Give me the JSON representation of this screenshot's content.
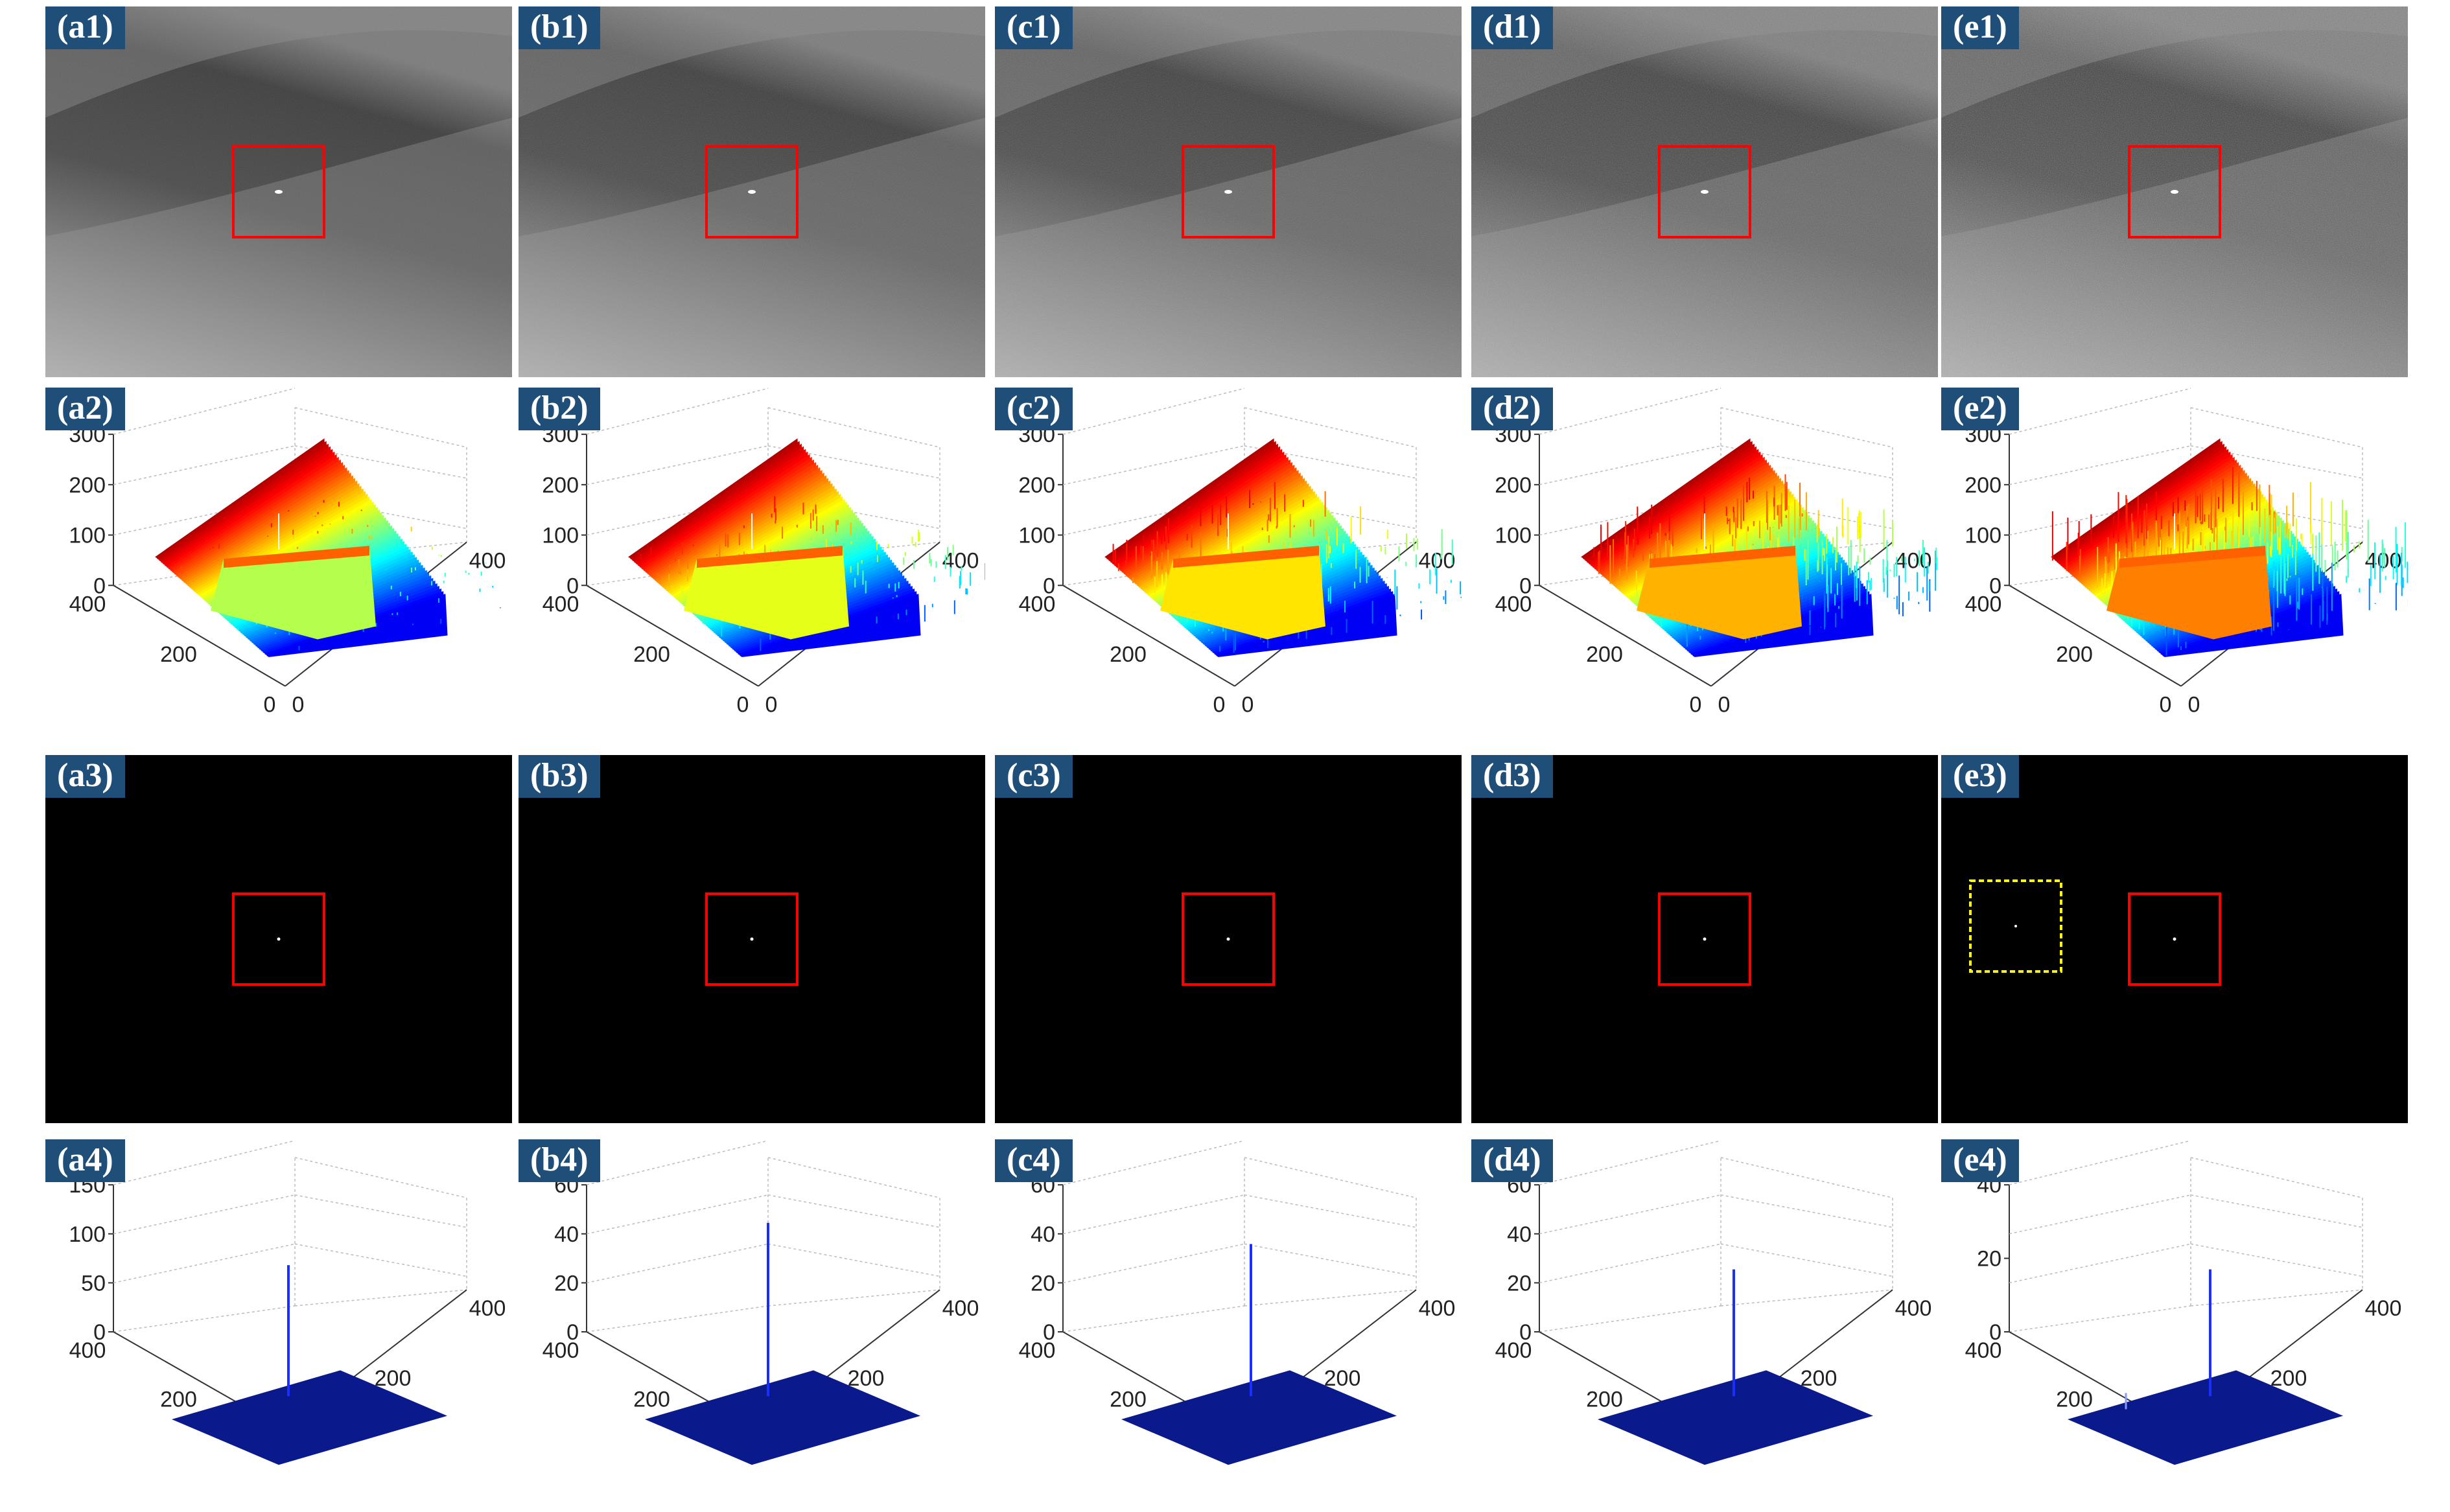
{
  "figure": {
    "panels": [
      {
        "row": 1,
        "col": 0,
        "label": "(a1)",
        "type": "infrared-image"
      },
      {
        "row": 1,
        "col": 1,
        "label": "(b1)",
        "type": "infrared-image"
      },
      {
        "row": 1,
        "col": 2,
        "label": "(c1)",
        "type": "infrared-image"
      },
      {
        "row": 1,
        "col": 3,
        "label": "(d1)",
        "type": "infrared-image"
      },
      {
        "row": 1,
        "col": 4,
        "label": "(e1)",
        "type": "infrared-image"
      },
      {
        "row": 2,
        "col": 0,
        "label": "(a2)",
        "type": "surface-plot",
        "zticks": [
          "300",
          "200",
          "100",
          "0"
        ],
        "xticks": [
          "400",
          "200",
          "0"
        ],
        "yticks": [
          "0",
          "200",
          "400"
        ]
      },
      {
        "row": 2,
        "col": 1,
        "label": "(b2)",
        "type": "surface-plot",
        "zticks": [
          "300",
          "200",
          "100",
          "0"
        ],
        "xticks": [
          "400",
          "200",
          "0"
        ],
        "yticks": [
          "0",
          "200",
          "400"
        ]
      },
      {
        "row": 2,
        "col": 2,
        "label": "(c2)",
        "type": "surface-plot",
        "zticks": [
          "300",
          "200",
          "100",
          "0"
        ],
        "xticks": [
          "400",
          "200",
          "0"
        ],
        "yticks": [
          "0",
          "200",
          "400"
        ]
      },
      {
        "row": 2,
        "col": 3,
        "label": "(d2)",
        "type": "surface-plot",
        "zticks": [
          "300",
          "200",
          "100",
          "0"
        ],
        "xticks": [
          "400",
          "200",
          "0"
        ],
        "yticks": [
          "0",
          "200",
          "400"
        ]
      },
      {
        "row": 2,
        "col": 4,
        "label": "(e2)",
        "type": "surface-plot",
        "zticks": [
          "300",
          "200",
          "100",
          "0"
        ],
        "xticks": [
          "400",
          "200",
          "0"
        ],
        "yticks": [
          "0",
          "200",
          "400"
        ]
      },
      {
        "row": 3,
        "col": 0,
        "label": "(a3)",
        "type": "detection-map"
      },
      {
        "row": 3,
        "col": 1,
        "label": "(b3)",
        "type": "detection-map"
      },
      {
        "row": 3,
        "col": 2,
        "label": "(c3)",
        "type": "detection-map"
      },
      {
        "row": 3,
        "col": 3,
        "label": "(d3)",
        "type": "detection-map"
      },
      {
        "row": 3,
        "col": 4,
        "label": "(e3)",
        "type": "detection-map",
        "false_alarm": true
      },
      {
        "row": 4,
        "col": 0,
        "label": "(a4)",
        "type": "detection-surface",
        "zticks": [
          "150",
          "100",
          "50",
          "0"
        ],
        "xticks": [
          "400",
          "200",
          "0"
        ],
        "yticks": [
          "0",
          "200",
          "400"
        ],
        "peak_fraction": 0.62
      },
      {
        "row": 4,
        "col": 1,
        "label": "(b4)",
        "type": "detection-surface",
        "zticks": [
          "60",
          "40",
          "20",
          "0"
        ],
        "xticks": [
          "400",
          "200",
          "0"
        ],
        "yticks": [
          "0",
          "200",
          "400"
        ],
        "peak_fraction": 0.82
      },
      {
        "row": 4,
        "col": 2,
        "label": "(c4)",
        "type": "detection-surface",
        "zticks": [
          "60",
          "40",
          "20",
          "0"
        ],
        "xticks": [
          "400",
          "200",
          "0"
        ],
        "yticks": [
          "0",
          "200",
          "400"
        ],
        "peak_fraction": 0.72
      },
      {
        "row": 4,
        "col": 3,
        "label": "(d4)",
        "type": "detection-surface",
        "zticks": [
          "60",
          "40",
          "20",
          "0"
        ],
        "xticks": [
          "400",
          "200",
          "0"
        ],
        "yticks": [
          "0",
          "200",
          "400"
        ],
        "peak_fraction": 0.6
      },
      {
        "row": 4,
        "col": 4,
        "label": "(e4)",
        "type": "detection-surface",
        "zticks": [
          "40",
          "20",
          "0"
        ],
        "xticks": [
          "400",
          "200",
          "0"
        ],
        "yticks": [
          "0",
          "200",
          "400"
        ],
        "peak_fraction": 0.6
      }
    ]
  },
  "colors": {
    "label_bg": "#1f4e79",
    "label_text": "#ffffff",
    "target_box": "#ff0000",
    "false_alarm_box": "#ffff00",
    "detection_base": "#0a1a8c",
    "spike": "#1a2fff"
  }
}
